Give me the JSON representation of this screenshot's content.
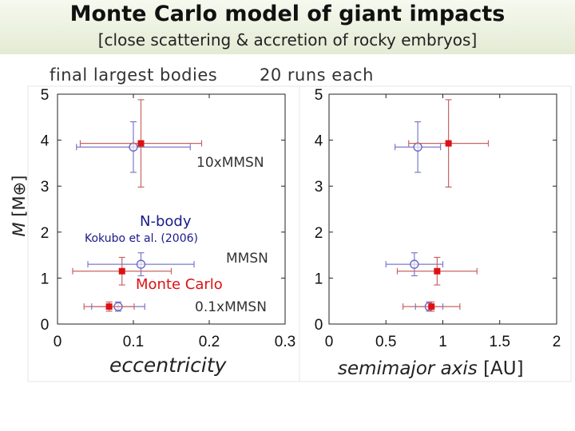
{
  "header": {
    "title": "Monte Carlo model of giant impacts",
    "subtitle": "[close scattering & accretion of rocky embryos]"
  },
  "chart_data": [
    {
      "type": "scatter",
      "panel": "left",
      "xlabel": "eccentricity",
      "ylabel_italic": "M",
      "ylabel_unit": "[M⊕]",
      "xlim": [
        0,
        0.3
      ],
      "ylim": [
        0,
        5
      ],
      "x_ticks": [
        "0",
        "0.1",
        "0.2",
        "0.3"
      ],
      "y_ticks": [
        "0",
        "1",
        "2",
        "3",
        "4",
        "5"
      ],
      "series": [
        {
          "name": "N-body",
          "color": "#6b6bc4",
          "marker": "open-circle",
          "points": [
            {
              "x": 0.1,
              "y": 3.85,
              "xerr": 0.075,
              "yerr": 0.55
            },
            {
              "x": 0.11,
              "y": 1.3,
              "xerr": 0.07,
              "yerr": 0.25
            },
            {
              "x": 0.08,
              "y": 0.38,
              "xerr": 0.035,
              "yerr": 0.1
            }
          ]
        },
        {
          "name": "Monte Carlo",
          "color": "#dd1111",
          "marker": "filled-square",
          "points": [
            {
              "x": 0.11,
              "y": 3.93,
              "xerr": 0.08,
              "yerr": 0.95
            },
            {
              "x": 0.085,
              "y": 1.15,
              "xerr": 0.065,
              "yerr": 0.3
            },
            {
              "x": 0.068,
              "y": 0.38,
              "xerr": 0.033,
              "yerr": 0.1
            }
          ]
        }
      ],
      "annotations": {
        "header_left": "final largest bodies",
        "header_right": "20 runs each",
        "case_10x": "10xMMSN",
        "case_mmsn": "MMSN",
        "case_01x": "0.1xMMSN",
        "nbody_label": "N-body",
        "reference": "Kokubo et al. (2006)",
        "mc_label": "Monte Carlo"
      }
    },
    {
      "type": "scatter",
      "panel": "right",
      "xlabel_italic": "semimajor axis",
      "xlabel_unit": "[AU]",
      "xlim": [
        0,
        2
      ],
      "ylim": [
        0,
        5
      ],
      "x_ticks": [
        "0",
        "0.5",
        "1",
        "1.5",
        "2"
      ],
      "y_ticks": [
        "0",
        "1",
        "2",
        "3",
        "4",
        "5"
      ],
      "series": [
        {
          "name": "N-body",
          "color": "#6b6bc4",
          "marker": "open-circle",
          "points": [
            {
              "x": 0.78,
              "y": 3.85,
              "xerr": 0.2,
              "yerr": 0.55
            },
            {
              "x": 0.75,
              "y": 1.3,
              "xerr": 0.25,
              "yerr": 0.25
            },
            {
              "x": 0.88,
              "y": 0.38,
              "xerr": 0.12,
              "yerr": 0.1
            }
          ]
        },
        {
          "name": "Monte Carlo",
          "color": "#dd1111",
          "marker": "filled-square",
          "points": [
            {
              "x": 1.05,
              "y": 3.93,
              "xerr": 0.35,
              "yerr": 0.95
            },
            {
              "x": 0.95,
              "y": 1.15,
              "xerr": 0.35,
              "yerr": 0.3
            },
            {
              "x": 0.9,
              "y": 0.38,
              "xerr": 0.25,
              "yerr": 0.1
            }
          ]
        }
      ]
    }
  ]
}
